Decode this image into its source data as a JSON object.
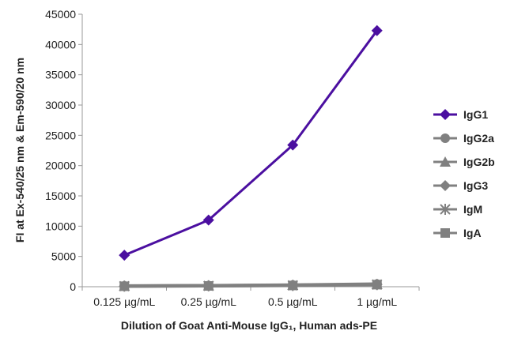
{
  "chart_data": {
    "type": "line",
    "categories": [
      "0.125 µg/mL",
      "0.25 µg/mL",
      "0.5 µg/mL",
      "1 µg/mL"
    ],
    "xlabel": "Dilution of Goat Anti-Mouse IgG₁, Human ads-PE",
    "ylabel": "FI at Ex-540/25 nm & Em-590/20 nm",
    "ylim": [
      0,
      45000
    ],
    "yticks": [
      0,
      5000,
      10000,
      15000,
      20000,
      25000,
      30000,
      35000,
      40000,
      45000
    ],
    "grid": false,
    "legend_position": "right",
    "series": [
      {
        "name": "IgG1",
        "values": [
          5200,
          11000,
          23400,
          42300
        ],
        "color": "#4b0fa0",
        "marker": "diamond"
      },
      {
        "name": "IgG2a",
        "values": [
          150,
          200,
          300,
          450
        ],
        "color": "#808080",
        "marker": "circle"
      },
      {
        "name": "IgG2b",
        "values": [
          120,
          180,
          260,
          400
        ],
        "color": "#808080",
        "marker": "triangle"
      },
      {
        "name": "IgG3",
        "values": [
          100,
          160,
          240,
          380
        ],
        "color": "#808080",
        "marker": "diamond"
      },
      {
        "name": "IgM",
        "values": [
          90,
          140,
          220,
          360
        ],
        "color": "#808080",
        "marker": "asterisk"
      },
      {
        "name": "IgA",
        "values": [
          80,
          130,
          200,
          340
        ],
        "color": "#808080",
        "marker": "square"
      }
    ]
  }
}
